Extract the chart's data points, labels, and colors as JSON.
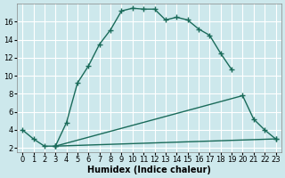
{
  "xlabel": "Humidex (Indice chaleur)",
  "bg_color": "#cde8ec",
  "grid_color": "#ffffff",
  "line_color": "#1a6b5a",
  "series": [
    {
      "x": [
        0,
        1,
        2,
        3,
        4,
        5,
        6,
        7,
        8,
        9,
        10,
        11,
        12,
        13,
        14,
        15,
        16,
        17,
        18,
        19
      ],
      "y": [
        4.0,
        3.0,
        2.2,
        2.2,
        4.8,
        9.2,
        11.1,
        13.5,
        15.1,
        17.2,
        17.5,
        17.4,
        17.4,
        16.2,
        16.5,
        16.2,
        15.2,
        14.5,
        12.5,
        10.7
      ]
    },
    {
      "x": [
        3,
        20,
        21,
        22,
        23
      ],
      "y": [
        2.2,
        7.8,
        5.2,
        4.0,
        3.0
      ]
    },
    {
      "x": [
        3,
        23
      ],
      "y": [
        2.2,
        3.0
      ]
    }
  ],
  "xlim": [
    -0.5,
    23.5
  ],
  "ylim": [
    1.5,
    18.0
  ],
  "yticks": [
    2,
    4,
    6,
    8,
    10,
    12,
    14,
    16
  ],
  "xticks": [
    0,
    1,
    2,
    3,
    4,
    5,
    6,
    7,
    8,
    9,
    10,
    11,
    12,
    13,
    14,
    15,
    16,
    17,
    18,
    19,
    20,
    21,
    22,
    23
  ],
  "marker": "+",
  "markersize": 4,
  "linewidth": 1.0,
  "label_fontsize": 7,
  "tick_fontsize": 6
}
